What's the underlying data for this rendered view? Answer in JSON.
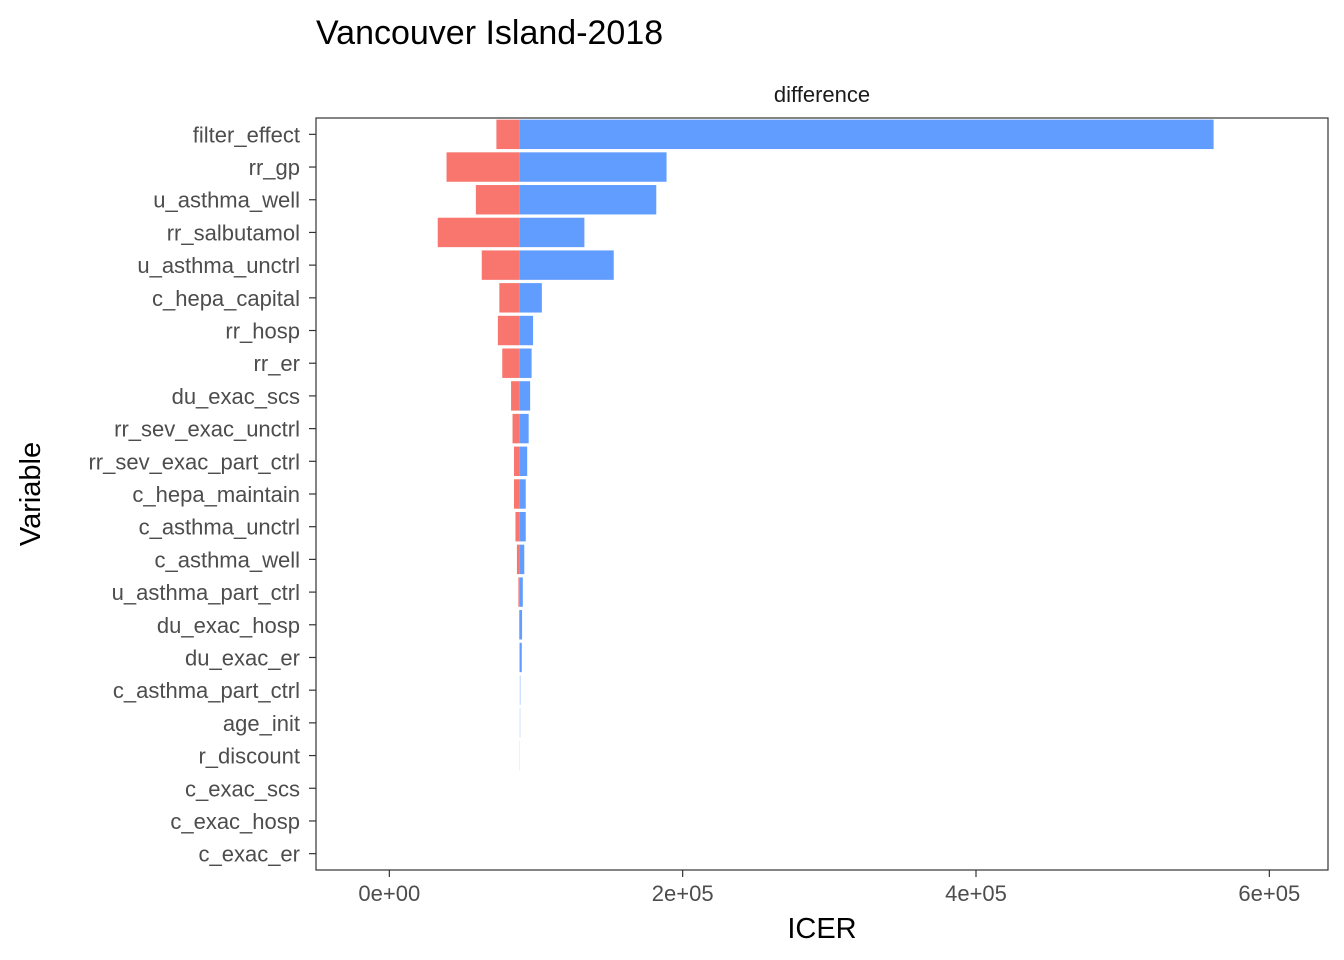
{
  "chart_data": {
    "type": "bar",
    "title": "Vancouver Island-2018",
    "facet_label": "difference",
    "xlabel": "ICER",
    "ylabel": "Variable",
    "xlim": [
      -50000,
      640000
    ],
    "x_ticks": [
      0,
      200000,
      400000,
      600000
    ],
    "x_tick_labels": [
      "0e+00",
      "2e+05",
      "4e+05",
      "6e+05"
    ],
    "base_value": 89000,
    "grid": false,
    "legend": "none",
    "colors": {
      "low": "#F8766D",
      "high": "#619CFF"
    },
    "categories": [
      "filter_effect",
      "rr_gp",
      "u_asthma_well",
      "rr_salbutamol",
      "u_asthma_unctrl",
      "c_hepa_capital",
      "rr_hosp",
      "rr_er",
      "du_exac_scs",
      "rr_sev_exac_unctrl",
      "rr_sev_exac_part_ctrl",
      "c_hepa_maintain",
      "c_asthma_unctrl",
      "c_asthma_well",
      "u_asthma_part_ctrl",
      "du_exac_hosp",
      "du_exac_er",
      "c_asthma_part_ctrl",
      "age_init",
      "r_discount",
      "c_exac_scs",
      "c_exac_hosp",
      "c_exac_er"
    ],
    "series": [
      {
        "values": [
          73000,
          39000,
          59000,
          33000,
          63000,
          75000,
          74000,
          77000,
          83000,
          84000,
          85000,
          85000,
          86000,
          87000,
          88000,
          88500,
          88700,
          89000,
          89000,
          89000,
          89000,
          89000,
          89000
        ]
      },
      {
        "values": [
          562000,
          189000,
          182000,
          133000,
          153000,
          104000,
          98000,
          97000,
          96000,
          95000,
          94000,
          93000,
          93000,
          92000,
          91000,
          90500,
          90300,
          89300,
          89200,
          89100,
          89000,
          89000,
          89000
        ]
      }
    ]
  }
}
